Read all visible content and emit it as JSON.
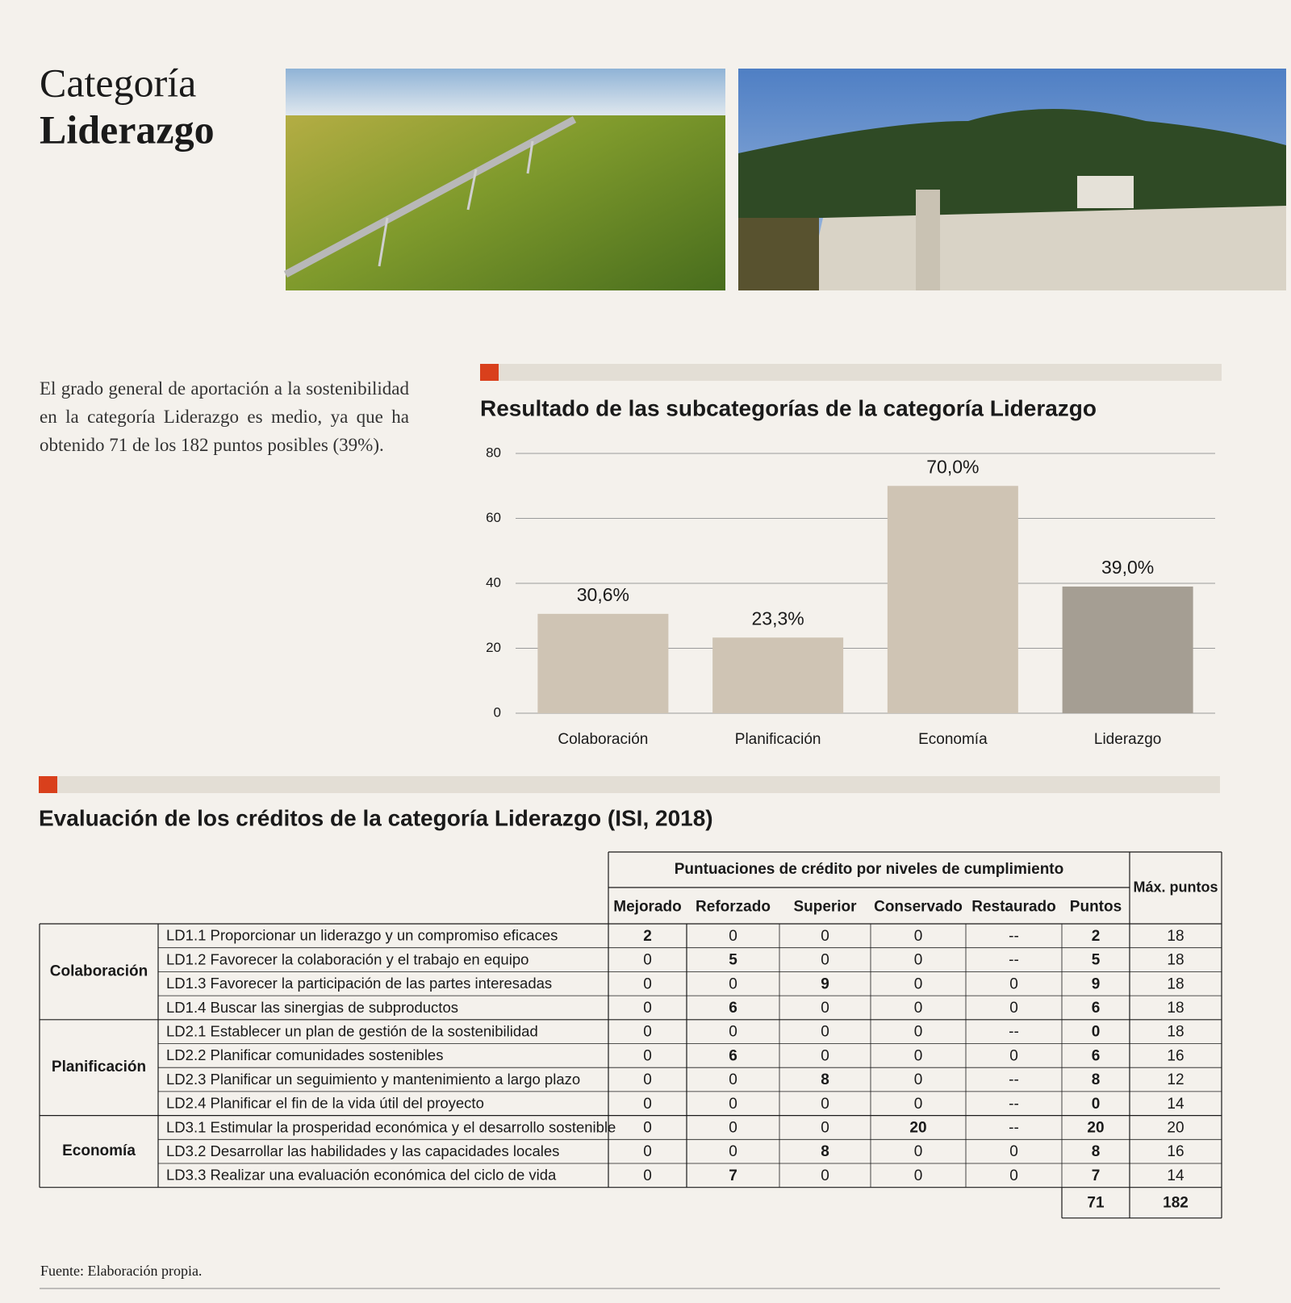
{
  "header": {
    "title_line1": "Categoría",
    "title_line2": "Liderazgo"
  },
  "intro": "El grado general de aportación a la sostenibilidad en la categoría Liderazgo es medio, ya que ha obtenido 71 de los 182 puntos posibles (39%).",
  "chart_data": {
    "type": "bar",
    "title": "Resultado de las subcategorías de la categoría Liderazgo",
    "categories": [
      "Colaboración",
      "Planificación",
      "Economía",
      "Liderazgo"
    ],
    "values": [
      30.6,
      23.3,
      70.0,
      39.0
    ],
    "value_labels": [
      "30,6%",
      "23,3%",
      "70,0%",
      "39,0%"
    ],
    "colors": [
      "#cfc4b4",
      "#cfc4b4",
      "#cfc4b4",
      "#a59e93"
    ],
    "ylim": [
      0,
      80
    ],
    "yticks": [
      0,
      20,
      40,
      60,
      80
    ],
    "grid": true
  },
  "table": {
    "title": "Evaluación de los créditos de la categoría Liderazgo (ISI, 2018)",
    "group_header": "Puntuaciones de crédito por niveles de cumplimiento",
    "columns": [
      "Mejorado",
      "Reforzado",
      "Superior",
      "Conservado",
      "Restaurado",
      "Puntos"
    ],
    "max_header": "Máx. puntos",
    "groups": [
      {
        "name": "Colaboración",
        "rows": [
          {
            "credit": "LD1.1 Proporcionar un liderazgo y un compromiso eficaces",
            "cells": [
              2,
              0,
              0,
              0,
              "--",
              2,
              18
            ]
          },
          {
            "credit": "LD1.2 Favorecer la colaboración y el trabajo en equipo",
            "cells": [
              0,
              5,
              0,
              0,
              "--",
              5,
              18
            ]
          },
          {
            "credit": "LD1.3 Favorecer la participación de las partes interesadas",
            "cells": [
              0,
              0,
              9,
              0,
              0,
              9,
              18
            ]
          },
          {
            "credit": "LD1.4 Buscar las sinergias de subproductos",
            "cells": [
              0,
              6,
              0,
              0,
              0,
              6,
              18
            ]
          }
        ]
      },
      {
        "name": "Planificación",
        "rows": [
          {
            "credit": "LD2.1 Establecer un plan de gestión de la sostenibilidad",
            "cells": [
              0,
              0,
              0,
              0,
              "--",
              0,
              18
            ]
          },
          {
            "credit": "LD2.2 Planificar comunidades sostenibles",
            "cells": [
              0,
              6,
              0,
              0,
              0,
              6,
              16
            ]
          },
          {
            "credit": "LD2.3 Planificar un seguimiento y mantenimiento a largo plazo",
            "cells": [
              0,
              0,
              8,
              0,
              "--",
              8,
              12
            ]
          },
          {
            "credit": "LD2.4 Planificar el fin de la vida útil del proyecto",
            "cells": [
              0,
              0,
              0,
              0,
              "--",
              0,
              14
            ]
          }
        ]
      },
      {
        "name": "Economía",
        "rows": [
          {
            "credit": "LD3.1 Estimular la prosperidad económica y el desarrollo sostenible",
            "cells": [
              0,
              0,
              0,
              20,
              "--",
              20,
              20
            ]
          },
          {
            "credit": "LD3.2 Desarrollar las habilidades y las capacidades locales",
            "cells": [
              0,
              0,
              8,
              0,
              0,
              8,
              16
            ]
          },
          {
            "credit": "LD3.3 Realizar una evaluación económica del ciclo de vida",
            "cells": [
              0,
              7,
              0,
              0,
              0,
              7,
              14
            ]
          }
        ]
      }
    ],
    "totals": [
      71,
      182
    ]
  },
  "source": "Fuente: Elaboración propia."
}
